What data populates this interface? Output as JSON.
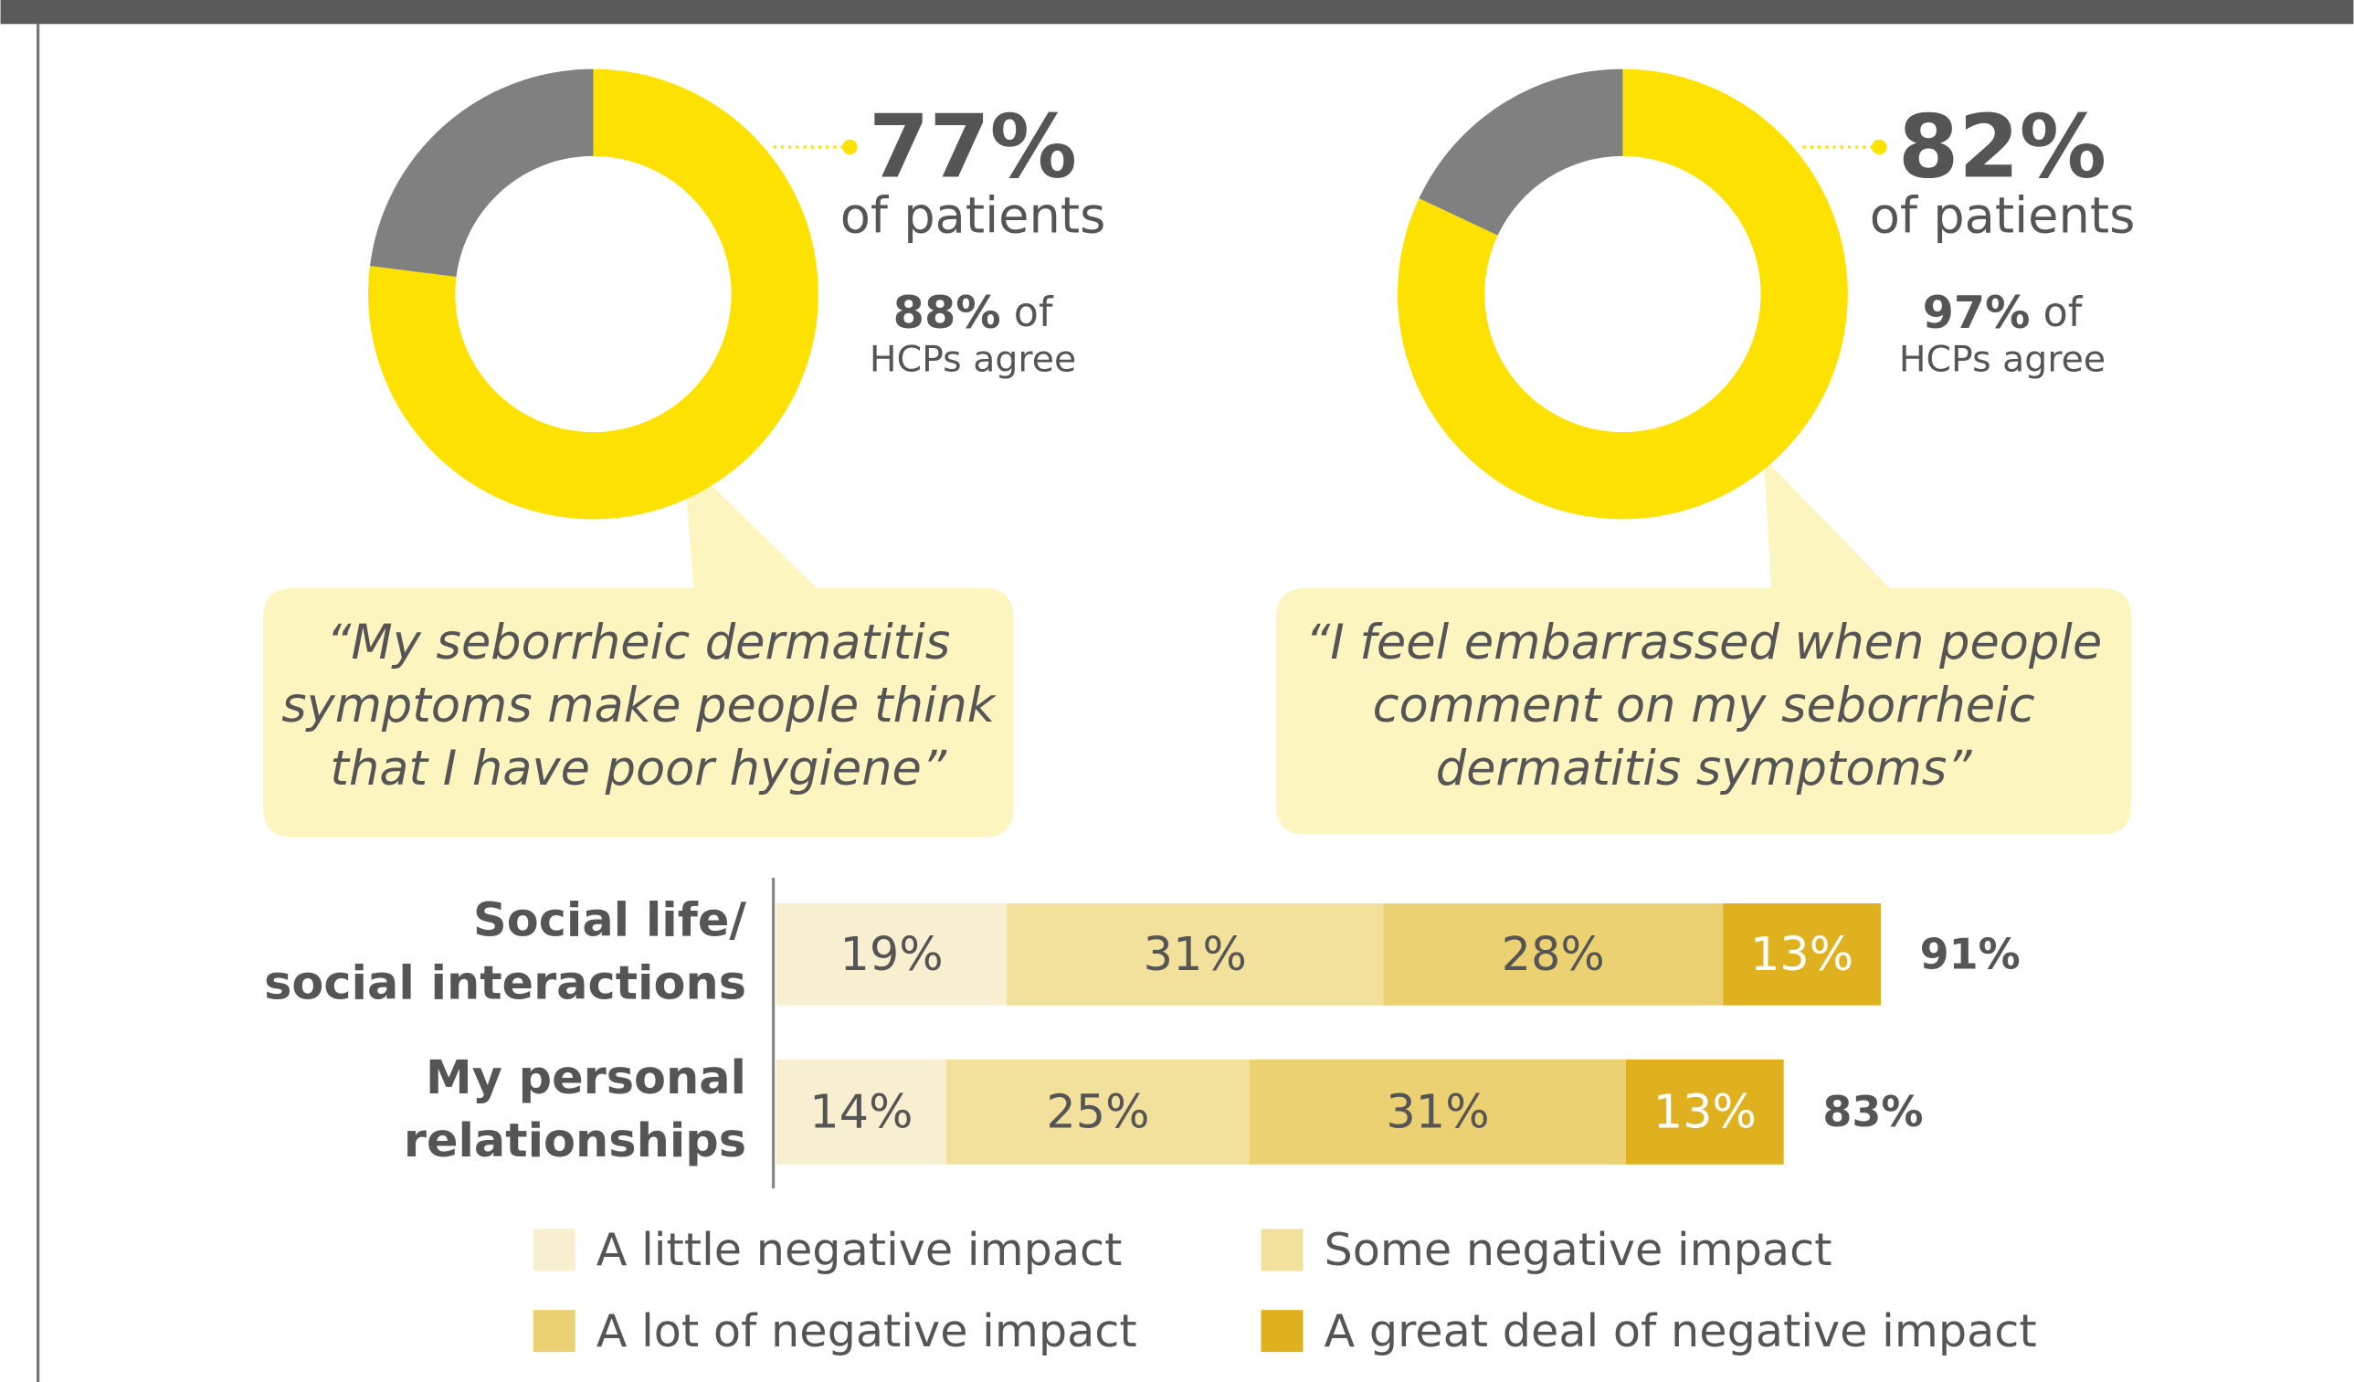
{
  "chart_data": [
    {
      "type": "donut",
      "values": [
        77,
        23
      ],
      "value_labels": [
        "77%",
        null
      ],
      "colors": [
        "#fde100",
        "#808080"
      ],
      "caption": "of patients",
      "hcp_value": 88,
      "hcp_label": "88%",
      "hcp_text": [
        "of",
        "HCPs agree"
      ],
      "quote": [
        "“My seborrheic dermatitis",
        "symptoms make people think",
        "that I have poor hygiene”"
      ]
    },
    {
      "type": "donut",
      "values": [
        82,
        18
      ],
      "value_labels": [
        "82%",
        null
      ],
      "colors": [
        "#fde100",
        "#808080"
      ],
      "caption": "of patients",
      "hcp_value": 97,
      "hcp_label": "97%",
      "hcp_text": [
        "of",
        "HCPs agree"
      ],
      "quote": [
        "“I feel embarrassed when people",
        "comment on my seborrheic",
        "dermatitis symptoms”"
      ]
    },
    {
      "type": "stacked_barh",
      "categories": [
        [
          "Social life/",
          "social interactions"
        ],
        [
          "My personal",
          "relationships"
        ]
      ],
      "xlim": [
        0,
        100
      ],
      "series": [
        {
          "name": "A little negative impact",
          "color": "#f8eed0",
          "values": [
            19,
            14
          ],
          "value_labels": [
            "19%",
            "14%"
          ]
        },
        {
          "name": "Some negative impact",
          "color": "#f2e09d",
          "values": [
            31,
            25
          ],
          "value_labels": [
            "31%",
            "25%"
          ]
        },
        {
          "name": "A lot of negative impact",
          "color": "#ecd172",
          "values": [
            28,
            31
          ],
          "value_labels": [
            "28%",
            "31%"
          ]
        },
        {
          "name": "A great deal of negative impact",
          "color": "#e0b11f",
          "values": [
            13,
            13
          ],
          "value_labels": [
            "13%",
            "13%"
          ]
        }
      ],
      "totals": [
        91,
        83
      ],
      "total_labels": [
        "91%",
        "83%"
      ]
    }
  ]
}
